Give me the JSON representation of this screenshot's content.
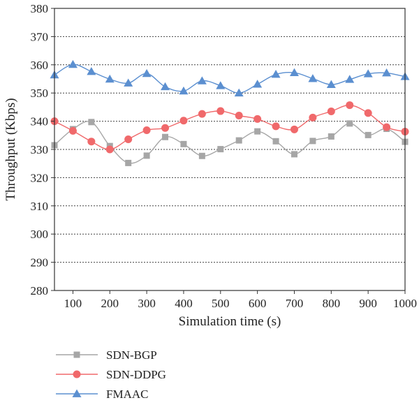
{
  "chart_data": {
    "type": "line",
    "title": "",
    "xlabel": "Simulation time (s)",
    "ylabel": "Throughput (Kbps)",
    "xlim": [
      50,
      1000
    ],
    "ylim": [
      280,
      380
    ],
    "xticks": [
      100,
      200,
      300,
      400,
      500,
      600,
      700,
      800,
      900,
      1000
    ],
    "yticks": [
      280,
      290,
      300,
      310,
      320,
      330,
      340,
      350,
      360,
      370,
      380
    ],
    "grid": "horizontal-dotted",
    "legend_position": "bottom-left",
    "x": [
      50,
      100,
      150,
      200,
      250,
      300,
      350,
      400,
      450,
      500,
      550,
      600,
      650,
      700,
      750,
      800,
      850,
      900,
      950,
      1000
    ],
    "series": [
      {
        "name": "SDN-BGP",
        "color": "#a6a6a6",
        "marker": "square",
        "values": [
          331.5,
          337.2,
          339.7,
          331.2,
          325.2,
          327.8,
          334.4,
          331.9,
          327.7,
          330.1,
          333.2,
          336.4,
          332.9,
          328.3,
          333.0,
          334.6,
          339.2,
          335.1,
          337.3,
          332.7
        ]
      },
      {
        "name": "SDN-DDPG",
        "color": "#f0696b",
        "marker": "circle",
        "values": [
          340.0,
          336.6,
          332.8,
          330.0,
          333.6,
          336.8,
          337.6,
          340.2,
          342.6,
          343.6,
          342.0,
          340.8,
          338.2,
          337.1,
          341.3,
          343.5,
          345.7,
          342.9,
          337.9,
          336.3
        ]
      },
      {
        "name": "FMAAC",
        "color": "#5b8fd0",
        "marker": "triangle",
        "values": [
          356.4,
          360.1,
          357.6,
          354.9,
          353.5,
          356.9,
          352.2,
          350.7,
          354.3,
          352.6,
          350.0,
          353.1,
          356.6,
          357.2,
          355.1,
          353.0,
          354.8,
          356.8,
          357.1,
          355.8
        ]
      }
    ]
  }
}
